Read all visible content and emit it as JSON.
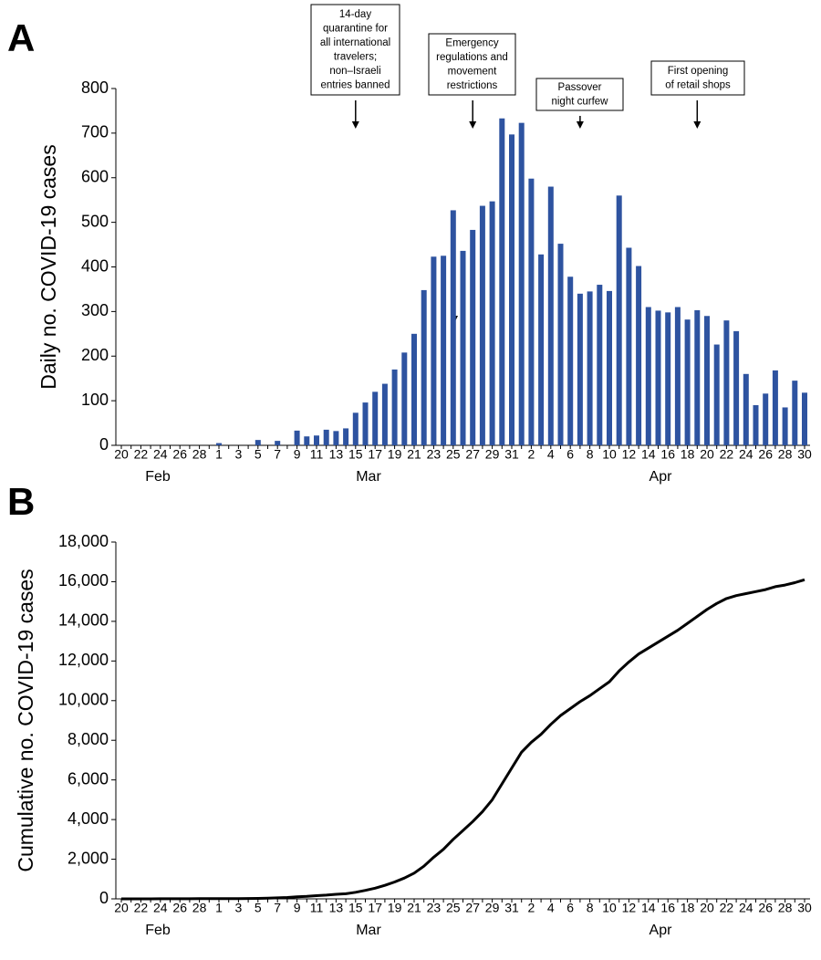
{
  "chart_data": [
    {
      "type": "bar",
      "panel_label": "A",
      "y_label": "Daily no. COVID-19 cases",
      "color": "#2e53a0",
      "categories": [
        "20",
        null,
        "22",
        null,
        "24",
        null,
        "26",
        null,
        "28",
        null,
        "1",
        null,
        "3",
        null,
        "5",
        null,
        "7",
        null,
        "9",
        null,
        "11",
        null,
        "13",
        null,
        "15",
        null,
        "17",
        null,
        "19",
        null,
        "21",
        null,
        "23",
        null,
        "25",
        null,
        "27",
        null,
        "29",
        null,
        "31",
        null,
        "2",
        null,
        "4",
        null,
        "6",
        null,
        "8",
        null,
        "10",
        null,
        "12",
        null,
        "14",
        null,
        "16",
        null,
        "18",
        null,
        "20",
        null,
        "22",
        null,
        "24",
        null,
        "26",
        null,
        "28",
        null,
        "30"
      ],
      "month_labels": [
        "Feb",
        "Mar",
        "Apr"
      ],
      "values": [
        0,
        0,
        0,
        0,
        0,
        0,
        0,
        0,
        0,
        0,
        5,
        0,
        0,
        0,
        12,
        0,
        10,
        0,
        33,
        20,
        22,
        35,
        32,
        38,
        73,
        96,
        120,
        138,
        170,
        208,
        250,
        348,
        423,
        425,
        527,
        436,
        483,
        537,
        547,
        733,
        697,
        723,
        598,
        428,
        580,
        452,
        378,
        340,
        345,
        360,
        346,
        560,
        443,
        402,
        310,
        302,
        298,
        310,
        282,
        303,
        290,
        226,
        280,
        256,
        160,
        90,
        116,
        168,
        85,
        145,
        118
      ],
      "ylim": [
        0,
        800
      ],
      "yticks": [
        0,
        100,
        200,
        300,
        400,
        500,
        600,
        700,
        800
      ],
      "annotations": [
        {
          "lines": [
            "14-day",
            "quarantine for",
            "all international",
            "travelers;",
            "non–Israeli",
            "entries banned"
          ]
        },
        {
          "lines": [
            "Emergency",
            "regulations and",
            "movement",
            "restrictions"
          ]
        },
        {
          "lines": [
            "Passover",
            "night curfew"
          ]
        },
        {
          "lines": [
            "First opening",
            "of retail shops"
          ]
        }
      ]
    },
    {
      "type": "line",
      "panel_label": "B",
      "y_label": "Cumulative no. COVID-19 cases",
      "color": "#000000",
      "categories": [
        "20",
        null,
        "22",
        null,
        "24",
        null,
        "26",
        null,
        "28",
        null,
        "1",
        null,
        "3",
        null,
        "5",
        null,
        "7",
        null,
        "9",
        null,
        "11",
        null,
        "13",
        null,
        "15",
        null,
        "17",
        null,
        "19",
        null,
        "21",
        null,
        "23",
        null,
        "25",
        null,
        "27",
        null,
        "29",
        null,
        "31",
        null,
        "2",
        null,
        "4",
        null,
        "6",
        null,
        "8",
        null,
        "10",
        null,
        "12",
        null,
        "14",
        null,
        "16",
        null,
        "18",
        null,
        "20",
        null,
        "22",
        null,
        "24",
        null,
        "26",
        null,
        "28",
        null,
        "30"
      ],
      "month_labels": [
        "Feb",
        "Mar",
        "Apr"
      ],
      "values": [
        0,
        1,
        1,
        2,
        3,
        4,
        5,
        6,
        7,
        9,
        10,
        12,
        15,
        18,
        25,
        39,
        50,
        70,
        100,
        125,
        160,
        190,
        230,
        260,
        330,
        430,
        540,
        680,
        850,
        1050,
        1300,
        1650,
        2100,
        2500,
        3000,
        3450,
        3900,
        4400,
        5000,
        5800,
        6600,
        7400,
        7900,
        8300,
        8800,
        9250,
        9600,
        9950,
        10250,
        10600,
        10950,
        11500,
        11950,
        12350,
        12650,
        12950,
        13250,
        13550,
        13900,
        14250,
        14600,
        14900,
        15150,
        15300,
        15400,
        15500,
        15600,
        15750,
        15830,
        15950,
        16100
      ],
      "ylim": [
        0,
        18000
      ],
      "yticks": [
        0,
        {
          "value": 2000,
          "label": "2,000"
        },
        {
          "value": 4000,
          "label": "4,000"
        },
        {
          "value": 6000,
          "label": "6,000"
        },
        {
          "value": 8000,
          "label": "8,000"
        },
        {
          "value": 10000,
          "label": "10,000"
        },
        {
          "value": 12000,
          "label": "12,000"
        },
        {
          "value": 14000,
          "label": "14,000"
        },
        {
          "value": 16000,
          "label": "16,000"
        },
        {
          "value": 18000,
          "label": "18,000"
        }
      ]
    }
  ]
}
